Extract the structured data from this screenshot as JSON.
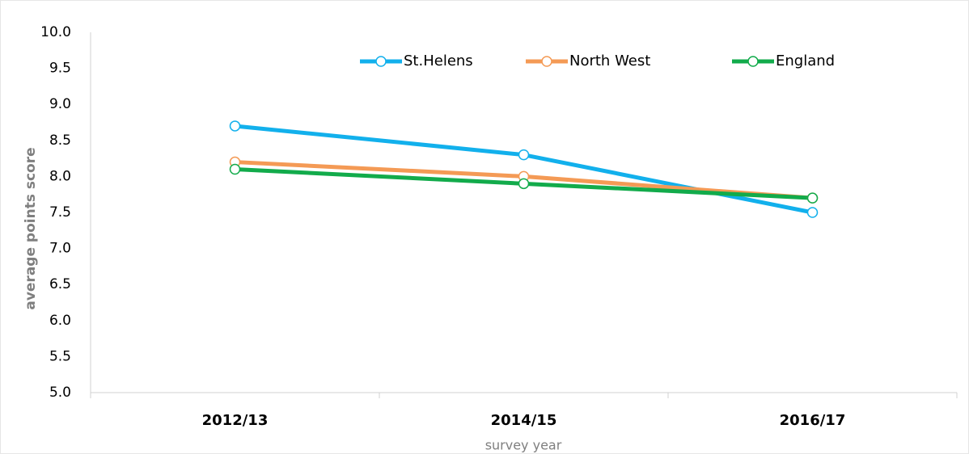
{
  "chart_data": {
    "type": "line",
    "categories": [
      "2012/13",
      "2014/15",
      "2016/17"
    ],
    "series": [
      {
        "name": "St.Helens",
        "color": "#12b0ec",
        "values": [
          8.7,
          8.3,
          7.5
        ]
      },
      {
        "name": "North West",
        "color": "#f49a55",
        "values": [
          8.2,
          8.0,
          7.7
        ]
      },
      {
        "name": "England",
        "color": "#12ab4b",
        "values": [
          8.1,
          7.9,
          7.7
        ]
      }
    ],
    "ylabel": "average points score",
    "xlabel": "survey year",
    "ylim": [
      5,
      10
    ],
    "yticks": [
      {
        "value": 5,
        "label": "5.0"
      },
      5.5,
      {
        "value": 6,
        "label": "6.0"
      },
      6.5,
      {
        "value": 7,
        "label": "7.0"
      },
      7.5,
      {
        "value": 8,
        "label": "8.0"
      },
      8.5,
      {
        "value": 9,
        "label": "9.0"
      },
      9.5,
      {
        "value": 10,
        "label": "10.0"
      }
    ],
    "grid": false,
    "legend": "top"
  }
}
